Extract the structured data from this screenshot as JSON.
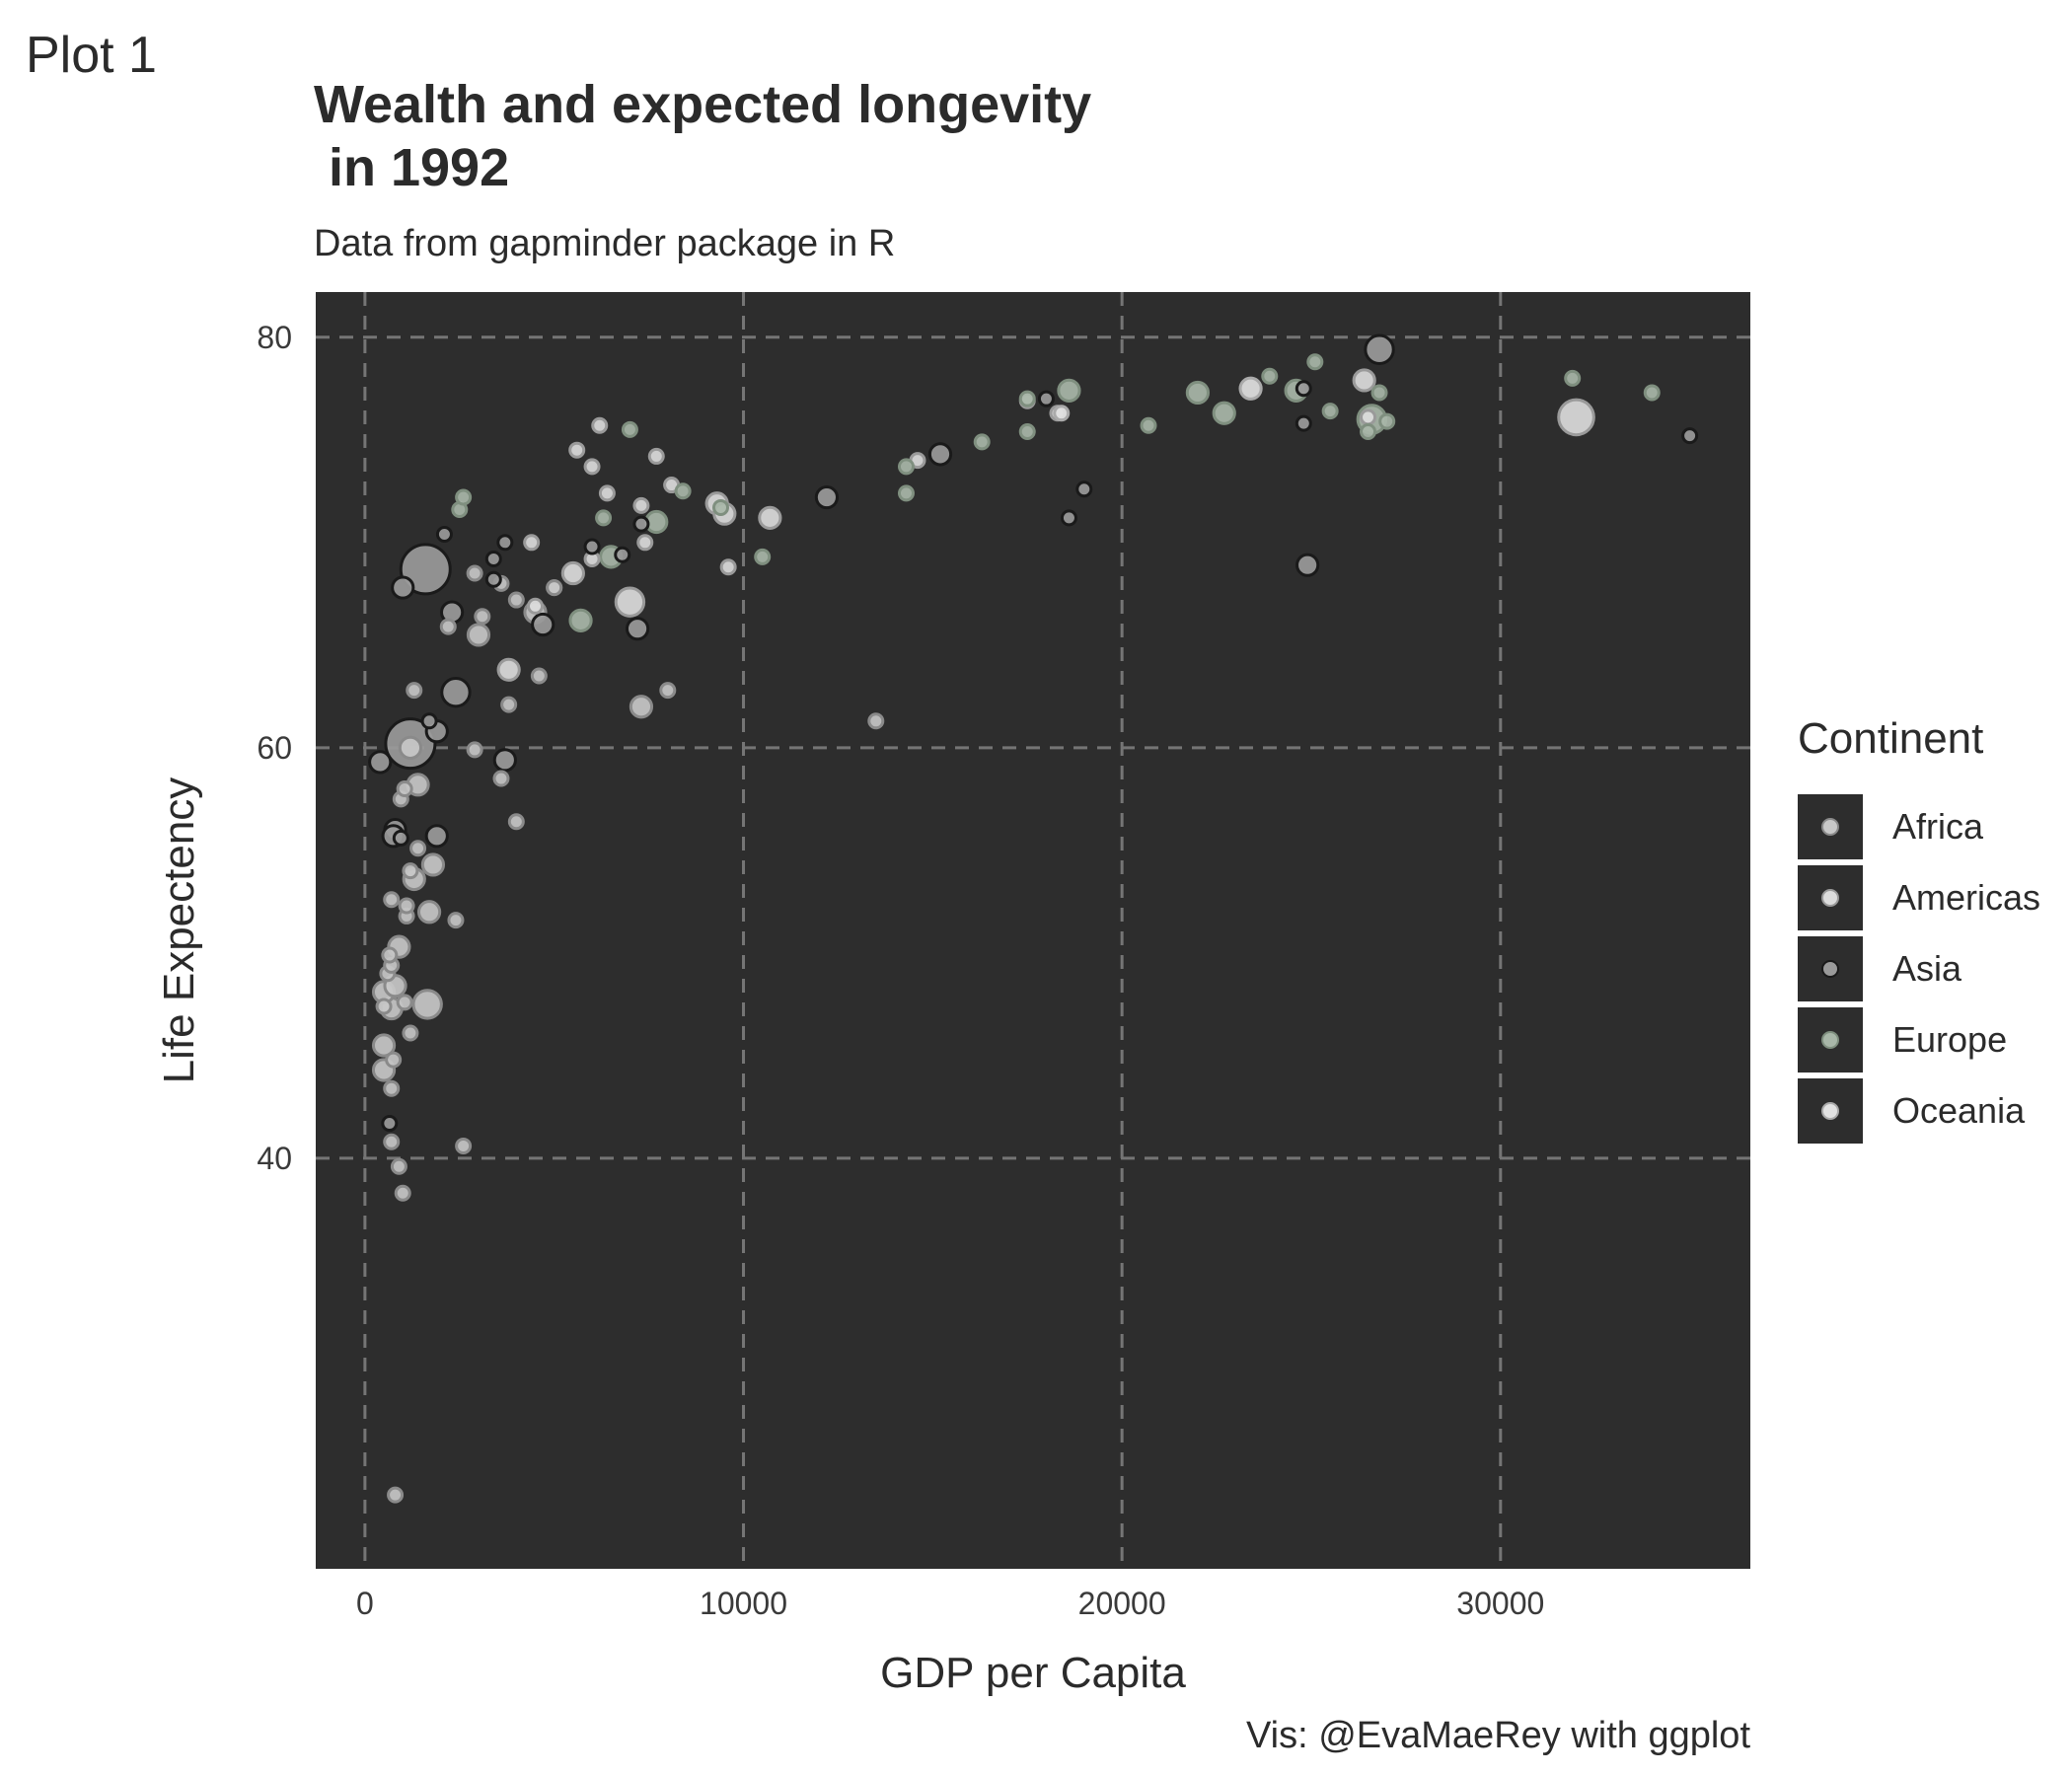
{
  "tag": "Plot 1",
  "title": "Wealth and expected longevity\n in 1992",
  "subtitle": "Data from gapminder package in R",
  "caption": "Vis: @EvaMaeRey with ggplot",
  "colors": {
    "panel": "#2d2d2d",
    "grid": "#757575",
    "Africa": "#c8c8c8",
    "Africa_stroke": "#8a8a8a",
    "Americas": "#dcdcdc",
    "Americas_stroke": "#9a9a9a",
    "Asia": "#9a9a9a",
    "Asia_stroke": "#1a1a1a",
    "Europe": "#a9b7a9",
    "Europe_stroke": "#7f8f7f",
    "Oceania": "#e2e2e2",
    "Oceania_stroke": "#aaaaaa"
  },
  "chart_data": {
    "type": "scatter",
    "title": "Wealth and expected longevity\n in 1992",
    "subtitle": "Data from gapminder package in R",
    "xlabel": "GDP per Capita",
    "ylabel": "Life Expectency",
    "xlim": [
      -1300,
      36600
    ],
    "ylim": [
      20,
      82.2
    ],
    "x_ticks": [
      0,
      10000,
      20000,
      30000
    ],
    "y_ticks": [
      40,
      60,
      80
    ],
    "grid": true,
    "legend_title": "Continent",
    "legend": [
      "Africa",
      "Americas",
      "Asia",
      "Europe",
      "Oceania"
    ],
    "legend_position": "right",
    "size_scale": "proportional to population (not labeled)",
    "points": [
      [
        800,
        23.6,
        "Africa",
        1
      ],
      [
        1000,
        38.3,
        "Africa",
        1
      ],
      [
        900,
        39.6,
        "Africa",
        1
      ],
      [
        2600,
        40.6,
        "Africa",
        1
      ],
      [
        700,
        40.8,
        "Africa",
        1
      ],
      [
        700,
        43.4,
        "Africa",
        1
      ],
      [
        500,
        44.3,
        "Africa",
        2
      ],
      [
        750,
        44.8,
        "Africa",
        1
      ],
      [
        500,
        45.5,
        "Africa",
        2
      ],
      [
        1200,
        46.1,
        "Africa",
        1
      ],
      [
        500,
        47.4,
        "Africa",
        1
      ],
      [
        700,
        47.3,
        "Africa",
        2
      ],
      [
        1050,
        47.6,
        "Africa",
        1
      ],
      [
        1650,
        47.5,
        "Africa",
        3
      ],
      [
        500,
        48.1,
        "Africa",
        2
      ],
      [
        800,
        48.4,
        "Africa",
        2
      ],
      [
        600,
        49.0,
        "Africa",
        1
      ],
      [
        700,
        49.4,
        "Africa",
        1
      ],
      [
        650,
        49.9,
        "Africa",
        1
      ],
      [
        900,
        50.3,
        "Africa",
        2
      ],
      [
        2400,
        51.6,
        "Africa",
        1
      ],
      [
        1100,
        51.8,
        "Africa",
        1
      ],
      [
        1700,
        52.0,
        "Africa",
        2
      ],
      [
        1100,
        52.3,
        "Africa",
        1
      ],
      [
        700,
        52.6,
        "Africa",
        1
      ],
      [
        1300,
        53.6,
        "Africa",
        2
      ],
      [
        1200,
        54.0,
        "Africa",
        1
      ],
      [
        1800,
        54.3,
        "Africa",
        2
      ],
      [
        1400,
        55.1,
        "Africa",
        1
      ],
      [
        4000,
        56.4,
        "Africa",
        1
      ],
      [
        950,
        57.5,
        "Africa",
        1
      ],
      [
        1050,
        58.0,
        "Africa",
        1
      ],
      [
        3600,
        58.5,
        "Africa",
        1
      ],
      [
        1400,
        58.2,
        "Africa",
        2
      ],
      [
        2900,
        59.9,
        "Africa",
        1
      ],
      [
        1200,
        60.0,
        "Africa",
        2
      ],
      [
        1300,
        62.8,
        "Africa",
        1
      ],
      [
        7300,
        62.0,
        "Africa",
        2
      ],
      [
        3800,
        62.1,
        "Africa",
        1
      ],
      [
        4600,
        63.5,
        "Africa",
        1
      ],
      [
        8000,
        62.8,
        "Africa",
        1
      ],
      [
        13500,
        61.3,
        "Africa",
        1
      ],
      [
        2200,
        65.9,
        "Africa",
        1
      ],
      [
        3000,
        65.5,
        "Africa",
        2
      ],
      [
        3100,
        66.4,
        "Africa",
        1
      ],
      [
        4500,
        66.6,
        "Africa",
        2
      ],
      [
        5000,
        67.8,
        "Africa",
        1
      ],
      [
        2900,
        68.5,
        "Africa",
        1
      ],
      [
        3600,
        68.0,
        "Africa",
        1
      ],
      [
        4000,
        67.2,
        "Africa",
        1
      ],
      [
        5000,
        67.8,
        "Africa",
        1
      ],
      [
        6000,
        69.2,
        "Americas",
        1
      ],
      [
        3800,
        63.8,
        "Americas",
        2
      ],
      [
        5500,
        68.5,
        "Americas",
        2
      ],
      [
        4400,
        70.0,
        "Americas",
        1
      ],
      [
        6400,
        72.4,
        "Americas",
        1
      ],
      [
        7700,
        74.2,
        "Americas",
        1
      ],
      [
        5600,
        74.5,
        "Americas",
        1
      ],
      [
        6200,
        75.7,
        "Americas",
        1
      ],
      [
        6000,
        73.7,
        "Americas",
        1
      ],
      [
        7300,
        71.8,
        "Americas",
        1
      ],
      [
        7400,
        70.0,
        "Americas",
        1
      ],
      [
        7000,
        67.1,
        "Americas",
        3
      ],
      [
        8100,
        72.8,
        "Americas",
        1
      ],
      [
        9300,
        71.9,
        "Americas",
        2
      ],
      [
        9500,
        71.4,
        "Americas",
        2
      ],
      [
        9600,
        68.8,
        "Americas",
        1
      ],
      [
        10700,
        71.2,
        "Americas",
        2
      ],
      [
        14600,
        74.0,
        "Americas",
        1
      ],
      [
        17500,
        76.9,
        "Americas",
        1
      ],
      [
        18300,
        76.3,
        "Americas",
        1
      ],
      [
        26500,
        76.1,
        "Americas",
        1
      ],
      [
        26400,
        77.9,
        "Americas",
        2
      ],
      [
        32000,
        76.1,
        "Americas",
        4
      ],
      [
        4500,
        66.9,
        "Americas",
        1
      ],
      [
        2100,
        70.4,
        "Asia",
        1
      ],
      [
        3700,
        70.0,
        "Asia",
        1
      ],
      [
        3400,
        69.2,
        "Asia",
        1
      ],
      [
        3400,
        68.2,
        "Asia",
        1
      ],
      [
        2300,
        66.6,
        "Asia",
        2
      ],
      [
        4700,
        66.0,
        "Asia",
        2
      ],
      [
        1000,
        67.8,
        "Asia",
        2
      ],
      [
        1600,
        68.7,
        "Asia",
        6
      ],
      [
        2400,
        62.7,
        "Asia",
        3
      ],
      [
        1900,
        60.8,
        "Asia",
        2
      ],
      [
        1700,
        61.3,
        "Asia",
        1
      ],
      [
        1200,
        60.2,
        "Asia",
        6
      ],
      [
        400,
        59.3,
        "Asia",
        2
      ],
      [
        3700,
        59.4,
        "Asia",
        2
      ],
      [
        1900,
        55.7,
        "Asia",
        2
      ],
      [
        800,
        56.0,
        "Asia",
        2
      ],
      [
        750,
        55.7,
        "Asia",
        2
      ],
      [
        950,
        55.6,
        "Asia",
        1
      ],
      [
        650,
        41.7,
        "Asia",
        1
      ],
      [
        6000,
        69.8,
        "Asia",
        1
      ],
      [
        7300,
        70.9,
        "Asia",
        1
      ],
      [
        7200,
        65.8,
        "Asia",
        2
      ],
      [
        12200,
        72.2,
        "Asia",
        2
      ],
      [
        15200,
        74.3,
        "Asia",
        2
      ],
      [
        18000,
        77.0,
        "Asia",
        1
      ],
      [
        18600,
        71.2,
        "Asia",
        1
      ],
      [
        19000,
        72.6,
        "Asia",
        1
      ],
      [
        24800,
        75.8,
        "Asia",
        1
      ],
      [
        24800,
        77.5,
        "Asia",
        1
      ],
      [
        24900,
        68.9,
        "Asia",
        2
      ],
      [
        26800,
        79.4,
        "Asia",
        3
      ],
      [
        35000,
        75.2,
        "Asia",
        1
      ],
      [
        6800,
        69.4,
        "Asia",
        1
      ],
      [
        2500,
        71.6,
        "Europe",
        1
      ],
      [
        2600,
        72.2,
        "Europe",
        1
      ],
      [
        5700,
        66.2,
        "Europe",
        2
      ],
      [
        6300,
        71.2,
        "Europe",
        1
      ],
      [
        6500,
        69.3,
        "Europe",
        2
      ],
      [
        7000,
        75.5,
        "Europe",
        1
      ],
      [
        7700,
        71.0,
        "Europe",
        2
      ],
      [
        8400,
        72.5,
        "Europe",
        1
      ],
      [
        9400,
        71.7,
        "Europe",
        1
      ],
      [
        10500,
        69.3,
        "Europe",
        1
      ],
      [
        14300,
        72.4,
        "Europe",
        1
      ],
      [
        14300,
        73.7,
        "Europe",
        1
      ],
      [
        16300,
        74.9,
        "Europe",
        1
      ],
      [
        17500,
        75.4,
        "Europe",
        1
      ],
      [
        17500,
        77.0,
        "Europe",
        1
      ],
      [
        18600,
        77.4,
        "Europe",
        2
      ],
      [
        20700,
        75.7,
        "Europe",
        1
      ],
      [
        22000,
        77.3,
        "Europe",
        2
      ],
      [
        22700,
        76.3,
        "Europe",
        2
      ],
      [
        23900,
        78.1,
        "Europe",
        1
      ],
      [
        24600,
        77.4,
        "Europe",
        2
      ],
      [
        25100,
        78.8,
        "Europe",
        1
      ],
      [
        25500,
        76.4,
        "Europe",
        1
      ],
      [
        26500,
        75.4,
        "Europe",
        1
      ],
      [
        26600,
        76.0,
        "Europe",
        3
      ],
      [
        26800,
        77.3,
        "Europe",
        1
      ],
      [
        27000,
        75.9,
        "Europe",
        1
      ],
      [
        31900,
        78.0,
        "Europe",
        1
      ],
      [
        34000,
        77.3,
        "Europe",
        1
      ],
      [
        23400,
        77.5,
        "Oceania",
        2
      ],
      [
        18400,
        76.3,
        "Oceania",
        1
      ]
    ]
  }
}
